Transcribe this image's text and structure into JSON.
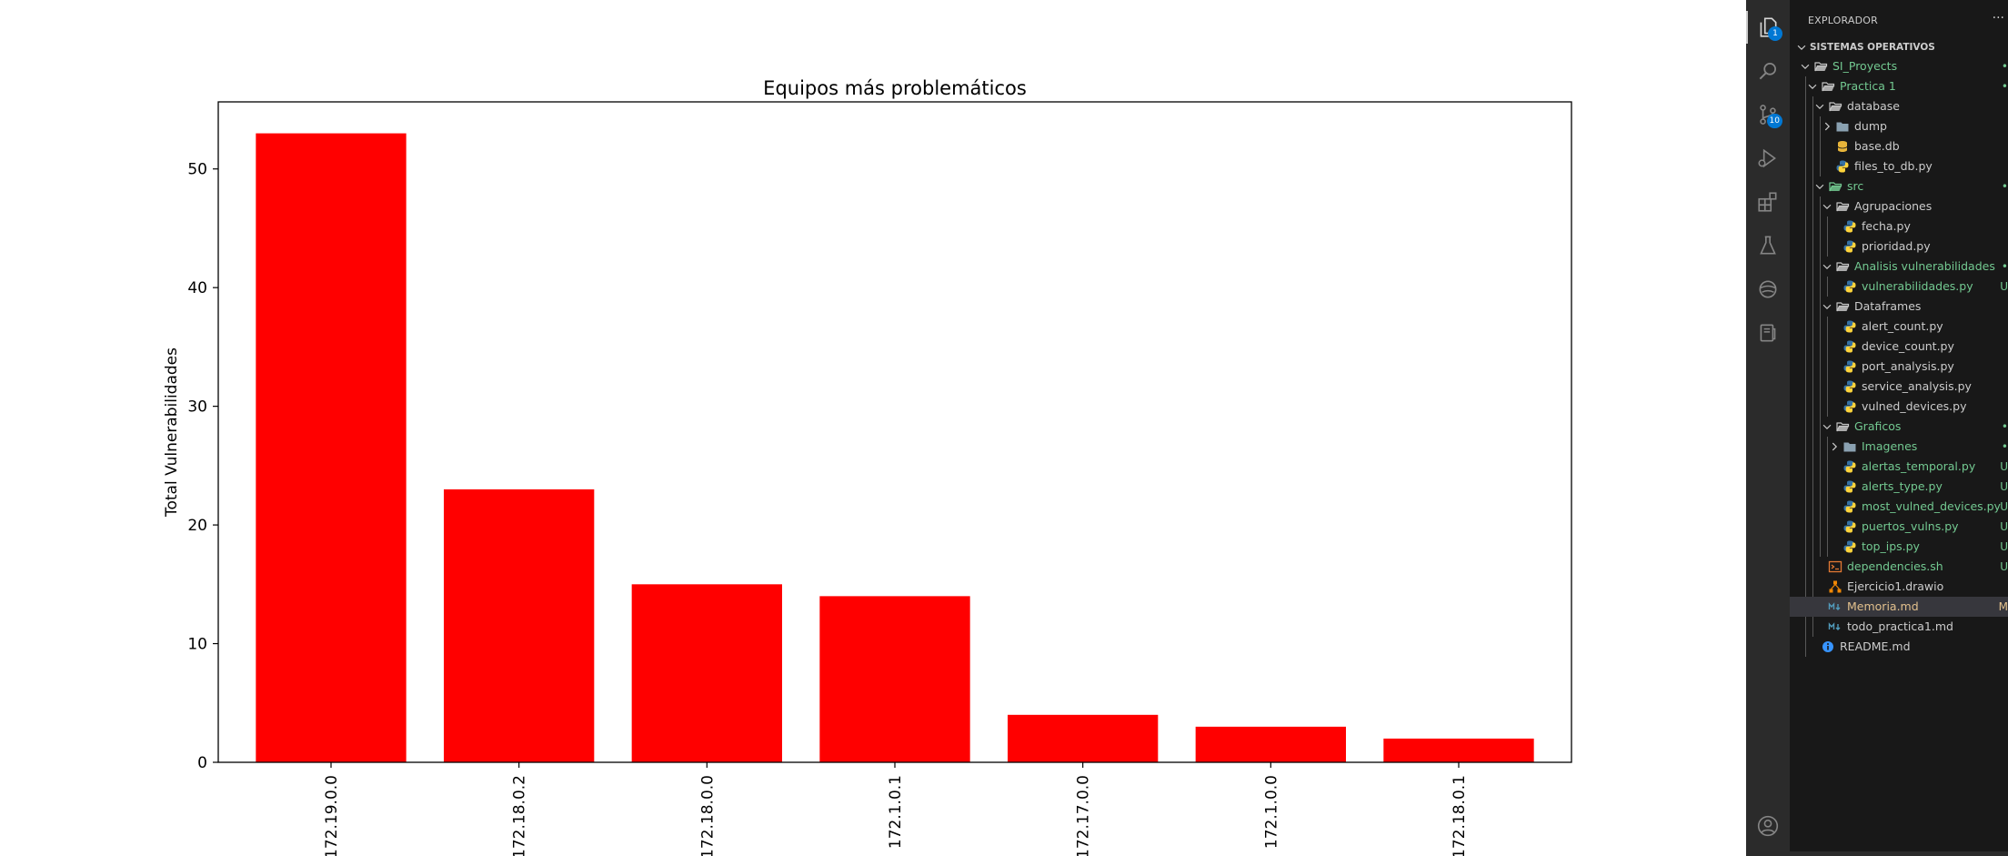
{
  "chart_data": {
    "type": "bar",
    "title": "Equipos más problemáticos",
    "xlabel": "",
    "ylabel": "Total Vulnerabilidades",
    "categories": [
      "172.19.0.0",
      "172.18.0.2",
      "172.18.0.0",
      "172.1.0.1",
      "172.17.0.0",
      "172.1.0.0",
      "172.18.0.1"
    ],
    "values": [
      53,
      23,
      15,
      14,
      4,
      3,
      2
    ],
    "ylim": [
      0,
      55.65
    ],
    "yticks": [
      0,
      10,
      20,
      30,
      40,
      50
    ],
    "bar_color": "#ff0000",
    "grid": false
  },
  "vscode": {
    "explorer_title": "EXPLORADOR",
    "more_label": "···",
    "section_title": "SISTEMAS OPERATIVOS",
    "activity": [
      {
        "name": "explorer-icon",
        "badge": "1"
      },
      {
        "name": "search-icon",
        "badge": ""
      },
      {
        "name": "source-control-icon",
        "badge": "10"
      },
      {
        "name": "run-debug-icon",
        "badge": ""
      },
      {
        "name": "extensions-icon",
        "badge": ""
      },
      {
        "name": "testing-icon",
        "badge": ""
      },
      {
        "name": "remote-explorer-icon",
        "badge": ""
      },
      {
        "name": "docker-icon",
        "badge": ""
      }
    ],
    "colors": {
      "added": "#73c991",
      "modified": "#e2c08d",
      "normal": "#cccccc",
      "info": "#3794ff",
      "folder": "#c5c5c5",
      "python_blue": "#3572a5",
      "python_yellow": "#ffd43b",
      "db": "#e8b53a",
      "shell": "#e37933",
      "drawio": "#f08705",
      "markdown": "#519aba"
    },
    "tree": [
      {
        "label": "SI_Proyects",
        "depth": 0,
        "kind": "folder-open",
        "twist": "down",
        "state": "added",
        "status": "•"
      },
      {
        "label": "Practica 1",
        "depth": 1,
        "kind": "folder-open",
        "twist": "down",
        "state": "added",
        "status": "•"
      },
      {
        "label": "database",
        "depth": 2,
        "kind": "folder-open",
        "twist": "down",
        "state": "normal",
        "status": ""
      },
      {
        "label": "dump",
        "depth": 3,
        "kind": "folder",
        "twist": "right",
        "state": "normal",
        "status": ""
      },
      {
        "label": "base.db",
        "depth": 3,
        "kind": "db",
        "twist": "",
        "state": "normal",
        "status": ""
      },
      {
        "label": "files_to_db.py",
        "depth": 3,
        "kind": "python",
        "twist": "",
        "state": "normal",
        "status": ""
      },
      {
        "label": "src",
        "depth": 2,
        "kind": "folder-src",
        "twist": "down",
        "state": "added",
        "status": "•"
      },
      {
        "label": "Agrupaciones",
        "depth": 3,
        "kind": "folder-open",
        "twist": "down",
        "state": "normal",
        "status": ""
      },
      {
        "label": "fecha.py",
        "depth": 4,
        "kind": "python",
        "twist": "",
        "state": "normal",
        "status": ""
      },
      {
        "label": "prioridad.py",
        "depth": 4,
        "kind": "python",
        "twist": "",
        "state": "normal",
        "status": ""
      },
      {
        "label": "Analisis vulnerabilidades",
        "depth": 3,
        "kind": "folder-open",
        "twist": "down",
        "state": "added",
        "status": "•"
      },
      {
        "label": "vulnerabilidades.py",
        "depth": 4,
        "kind": "python",
        "twist": "",
        "state": "added",
        "status": "U"
      },
      {
        "label": "Dataframes",
        "depth": 3,
        "kind": "folder-open",
        "twist": "down",
        "state": "normal",
        "status": ""
      },
      {
        "label": "alert_count.py",
        "depth": 4,
        "kind": "python",
        "twist": "",
        "state": "normal",
        "status": ""
      },
      {
        "label": "device_count.py",
        "depth": 4,
        "kind": "python",
        "twist": "",
        "state": "normal",
        "status": ""
      },
      {
        "label": "port_analysis.py",
        "depth": 4,
        "kind": "python",
        "twist": "",
        "state": "normal",
        "status": ""
      },
      {
        "label": "service_analysis.py",
        "depth": 4,
        "kind": "python",
        "twist": "",
        "state": "normal",
        "status": ""
      },
      {
        "label": "vulned_devices.py",
        "depth": 4,
        "kind": "python",
        "twist": "",
        "state": "normal",
        "status": ""
      },
      {
        "label": "Graficos",
        "depth": 3,
        "kind": "folder-open",
        "twist": "down",
        "state": "added",
        "status": "•"
      },
      {
        "label": "Imagenes",
        "depth": 4,
        "kind": "folder",
        "twist": "right",
        "state": "added",
        "status": "•"
      },
      {
        "label": "alertas_temporal.py",
        "depth": 4,
        "kind": "python",
        "twist": "",
        "state": "added",
        "status": "U"
      },
      {
        "label": "alerts_type.py",
        "depth": 4,
        "kind": "python",
        "twist": "",
        "state": "added",
        "status": "U"
      },
      {
        "label": "most_vulned_devices.py",
        "depth": 4,
        "kind": "python",
        "twist": "",
        "state": "added",
        "status": "U"
      },
      {
        "label": "puertos_vulns.py",
        "depth": 4,
        "kind": "python",
        "twist": "",
        "state": "added",
        "status": "U"
      },
      {
        "label": "top_ips.py",
        "depth": 4,
        "kind": "python",
        "twist": "",
        "state": "added",
        "status": "U"
      },
      {
        "label": "dependencies.sh",
        "depth": 2,
        "kind": "shell",
        "twist": "",
        "state": "added",
        "status": "U"
      },
      {
        "label": "Ejercicio1.drawio",
        "depth": 2,
        "kind": "drawio",
        "twist": "",
        "state": "normal",
        "status": ""
      },
      {
        "label": "Memoria.md",
        "depth": 2,
        "kind": "markdown",
        "twist": "",
        "state": "modified",
        "status": "M",
        "selected": true
      },
      {
        "label": "todo_practica1.md",
        "depth": 2,
        "kind": "markdown",
        "twist": "",
        "state": "normal",
        "status": ""
      },
      {
        "label": "README.md",
        "depth": 1,
        "kind": "info",
        "twist": "",
        "state": "normal",
        "status": ""
      }
    ]
  }
}
